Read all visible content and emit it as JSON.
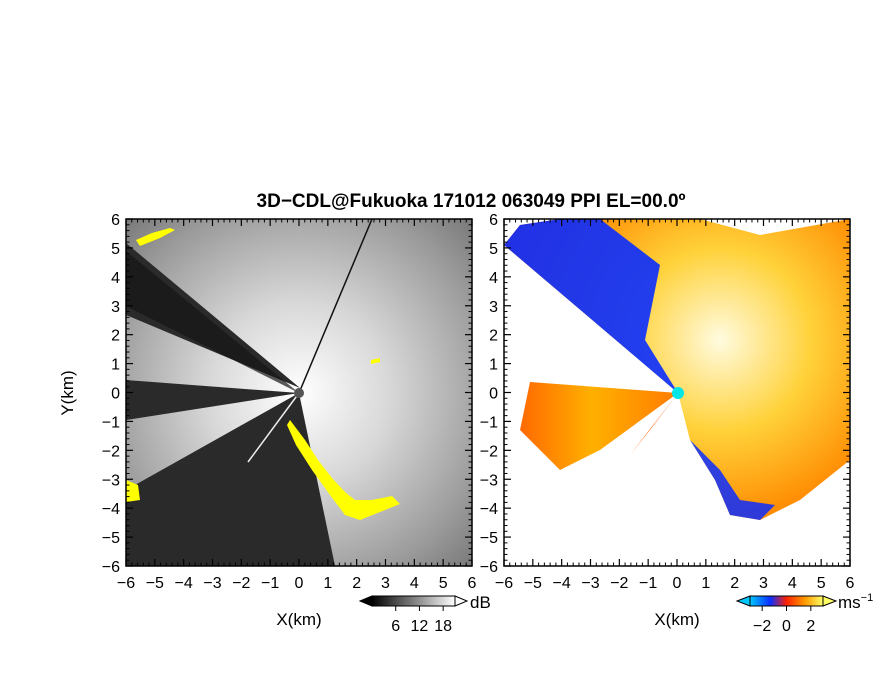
{
  "title": "3D−CDL@Fukuoka 171012 063049 PPI EL=00.0º",
  "chart_data": [
    {
      "type": "heatmap",
      "panel": "reflectivity",
      "xlabel": "X(km)",
      "ylabel": "Y(km)",
      "xlim": [
        -6,
        6
      ],
      "ylim": [
        -6,
        6
      ],
      "x_ticks": [
        "−6",
        "−5",
        "−4",
        "−3",
        "−2",
        "−1",
        "0",
        "1",
        "2",
        "3",
        "4",
        "5",
        "6"
      ],
      "y_ticks": [
        "−6",
        "−5",
        "−4",
        "−3",
        "−2",
        "−1",
        "0",
        "1",
        "2",
        "3",
        "4",
        "5",
        "6"
      ],
      "colorbar": {
        "unit": "dB",
        "tick_labels": [
          "6",
          "12",
          "18"
        ],
        "range": [
          0,
          21
        ],
        "colors": [
          "#000000",
          "#ffffff"
        ]
      },
      "highlight_color": "#ffff00"
    },
    {
      "type": "heatmap",
      "panel": "doppler velocity",
      "xlabel": "X(km)",
      "xlim": [
        -6,
        6
      ],
      "ylim": [
        -6,
        6
      ],
      "x_ticks": [
        "−6",
        "−5",
        "−4",
        "−3",
        "−2",
        "−1",
        "0",
        "1",
        "2",
        "3",
        "4",
        "5",
        "6"
      ],
      "y_ticks": [
        "−6",
        "−5",
        "−4",
        "−3",
        "−2",
        "−1",
        "0",
        "1",
        "2",
        "3",
        "4",
        "5",
        "6"
      ],
      "colorbar": {
        "unit": "ms",
        "unit_exponent": "−1",
        "tick_labels": [
          "−2",
          "0",
          "2"
        ],
        "range": [
          -3,
          3
        ],
        "colors": [
          "#00c8ff",
          "#0a2cff",
          "#ff2200",
          "#ff9900",
          "#ffff66"
        ]
      },
      "radar_marker_color": "#00e5e5"
    }
  ]
}
